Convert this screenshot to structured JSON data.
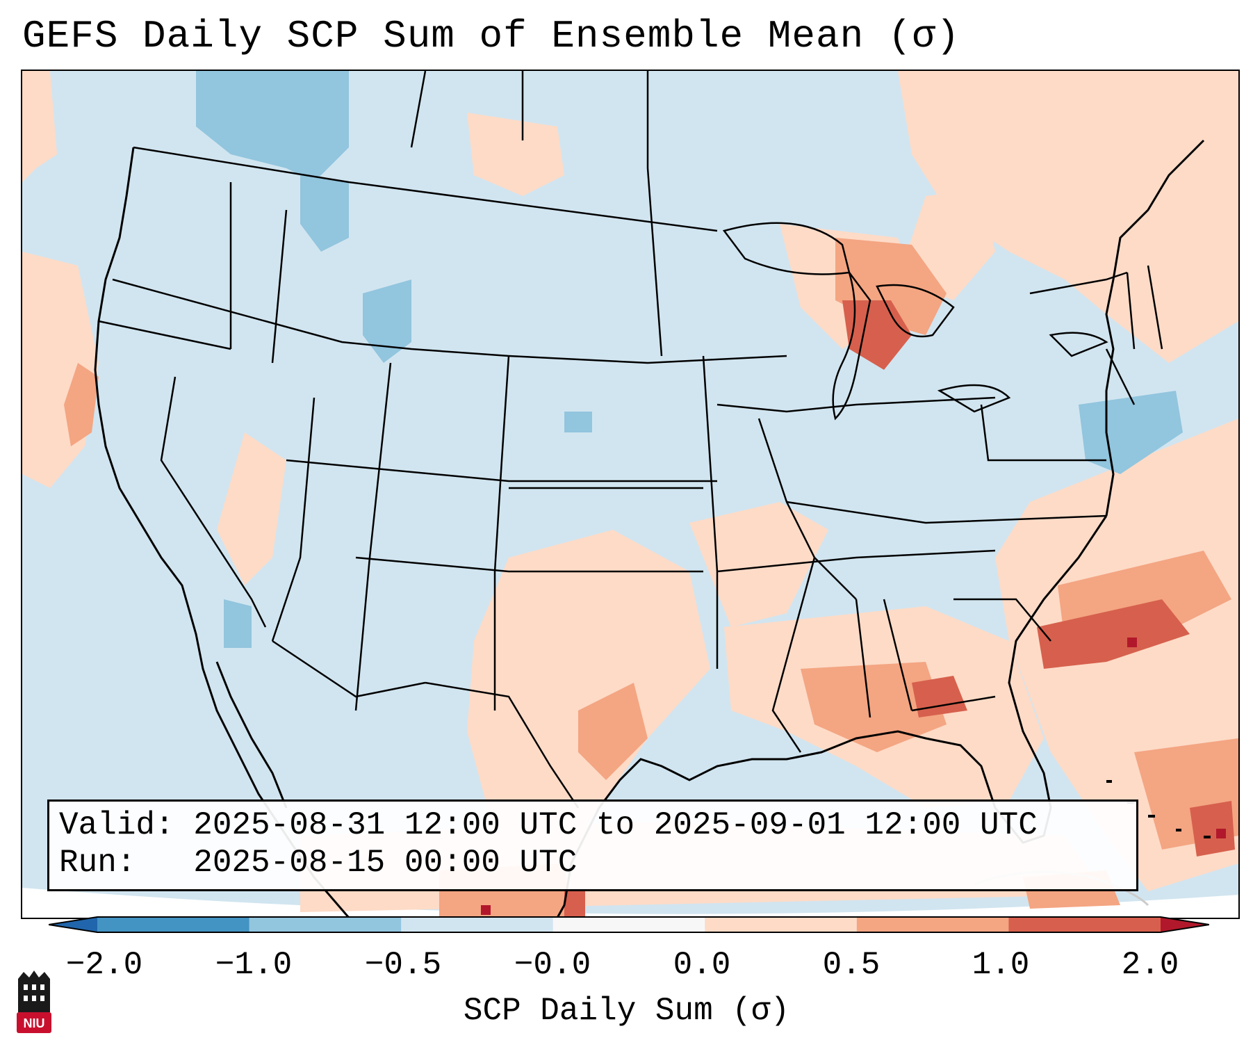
{
  "title": "GEFS Daily SCP Sum of Ensemble Mean (σ)",
  "map": {
    "region": "Contiguous United States",
    "layers": [
      "SCP anomaly shading",
      "state borders",
      "coastlines"
    ]
  },
  "info": {
    "valid_line": "Valid: 2025-08-31 12:00 UTC to 2025-09-01 12:00 UTC",
    "run_line": "Run:   2025-08-15 00:00 UTC"
  },
  "colorbar": {
    "label": "SCP Daily Sum (σ)",
    "ticks": [
      "−2.0",
      "−1.0",
      "−0.5",
      "−0.0",
      "0.0",
      "0.5",
      "1.0",
      "2.0"
    ],
    "colors": [
      "#2166ac",
      "#4393c3",
      "#92c5de",
      "#d1e5f0",
      "#f7f7f7",
      "#fddbc7",
      "#f4a582",
      "#d6604d",
      "#b2182b"
    ]
  },
  "logo": {
    "text": "NIU",
    "color": "#c8102e"
  }
}
